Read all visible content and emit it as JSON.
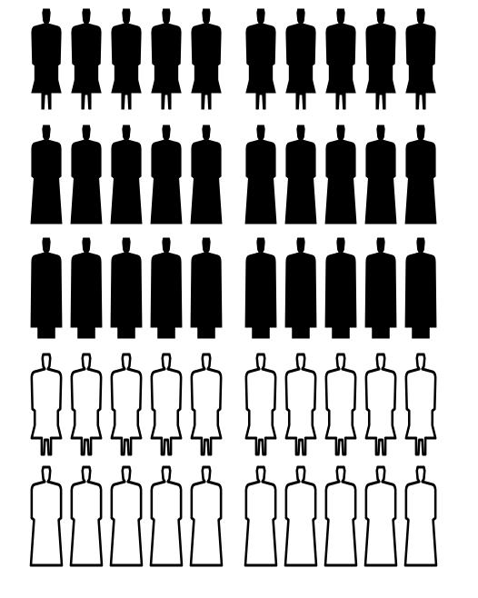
{
  "figure": {
    "colors": {
      "filled": "#000000",
      "outline_stroke": "#000000",
      "outline_fill": "#ffffff",
      "background": "#ffffff"
    },
    "groups": 2,
    "figures_per_group": 5,
    "rows": [
      {
        "shape": "dress",
        "style": "filled"
      },
      {
        "shape": "tunic",
        "style": "filled"
      },
      {
        "shape": "coat",
        "style": "filled"
      },
      {
        "shape": "dress",
        "style": "outline"
      },
      {
        "shape": "tunic",
        "style": "outline"
      }
    ]
  }
}
